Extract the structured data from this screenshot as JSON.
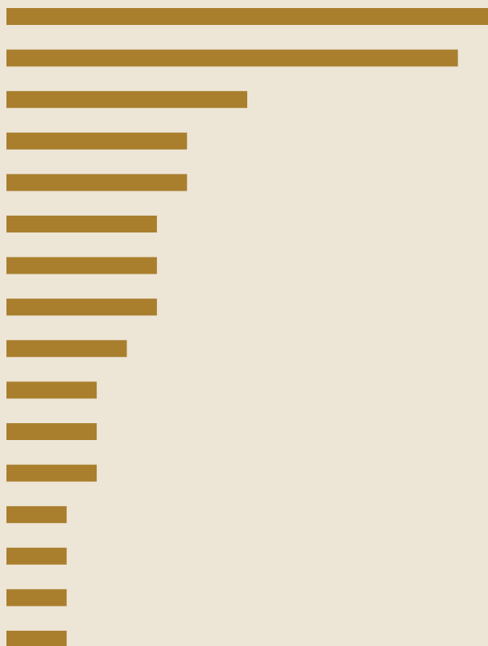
{
  "chart_data": {
    "type": "hbar",
    "values": [
      16,
      15,
      8,
      6,
      6,
      5,
      5,
      5,
      4,
      3,
      3,
      3,
      2,
      2,
      2,
      2
    ],
    "color": "#a97f2e",
    "background": "#ede5d6",
    "xlim": [
      0,
      16
    ]
  }
}
